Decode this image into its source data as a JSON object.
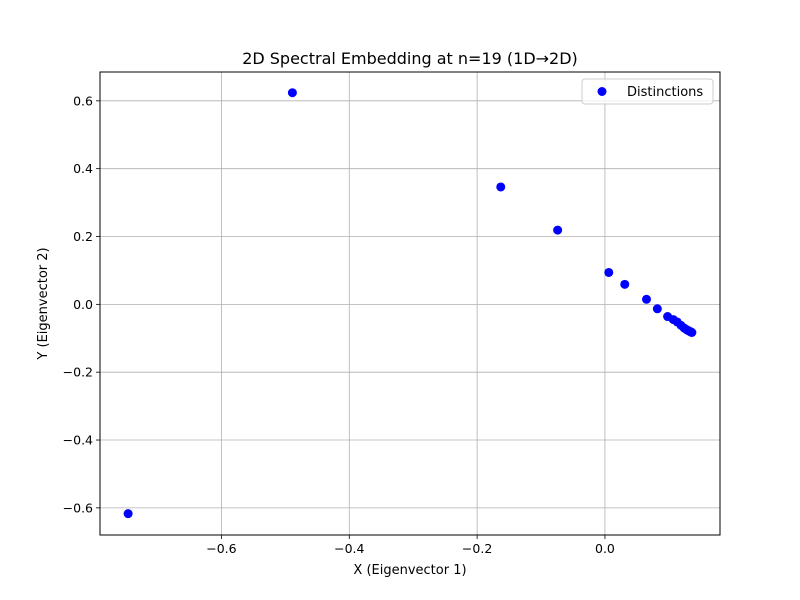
{
  "chart_data": {
    "type": "scatter",
    "title": "2D Spectral Embedding at n=19 (1D→2D)",
    "xlabel": "X (Eigenvector 1)",
    "ylabel": "Y (Eigenvector 2)",
    "xlim": [
      -0.79,
      0.18
    ],
    "ylim": [
      -0.68,
      0.685
    ],
    "xticks": [
      -0.6,
      -0.4,
      -0.2,
      0.0
    ],
    "xtick_labels": [
      "−0.6",
      "−0.4",
      "−0.2",
      "0.0"
    ],
    "yticks": [
      -0.6,
      -0.4,
      -0.2,
      0.0,
      0.2,
      0.4,
      0.6
    ],
    "ytick_labels": [
      "−0.6",
      "−0.4",
      "−0.2",
      "0.0",
      "0.2",
      "0.4",
      "0.6"
    ],
    "grid": true,
    "legend_position": "top-right",
    "series": [
      {
        "name": "Distinctions",
        "color": "#0000ff",
        "marker": "circle",
        "points": [
          {
            "x": -0.746,
            "y": -0.617
          },
          {
            "x": -0.489,
            "y": 0.624
          },
          {
            "x": -0.163,
            "y": 0.346
          },
          {
            "x": -0.074,
            "y": 0.219
          },
          {
            "x": 0.006,
            "y": 0.094
          },
          {
            "x": 0.031,
            "y": 0.059
          },
          {
            "x": 0.065,
            "y": 0.015
          },
          {
            "x": 0.082,
            "y": -0.013
          },
          {
            "x": 0.098,
            "y": -0.036
          },
          {
            "x": 0.107,
            "y": -0.045
          },
          {
            "x": 0.113,
            "y": -0.052
          },
          {
            "x": 0.119,
            "y": -0.062
          },
          {
            "x": 0.124,
            "y": -0.07
          },
          {
            "x": 0.128,
            "y": -0.075
          },
          {
            "x": 0.131,
            "y": -0.078
          },
          {
            "x": 0.133,
            "y": -0.08
          },
          {
            "x": 0.134,
            "y": -0.081
          },
          {
            "x": 0.135,
            "y": -0.082
          },
          {
            "x": 0.136,
            "y": -0.083
          }
        ]
      }
    ]
  }
}
